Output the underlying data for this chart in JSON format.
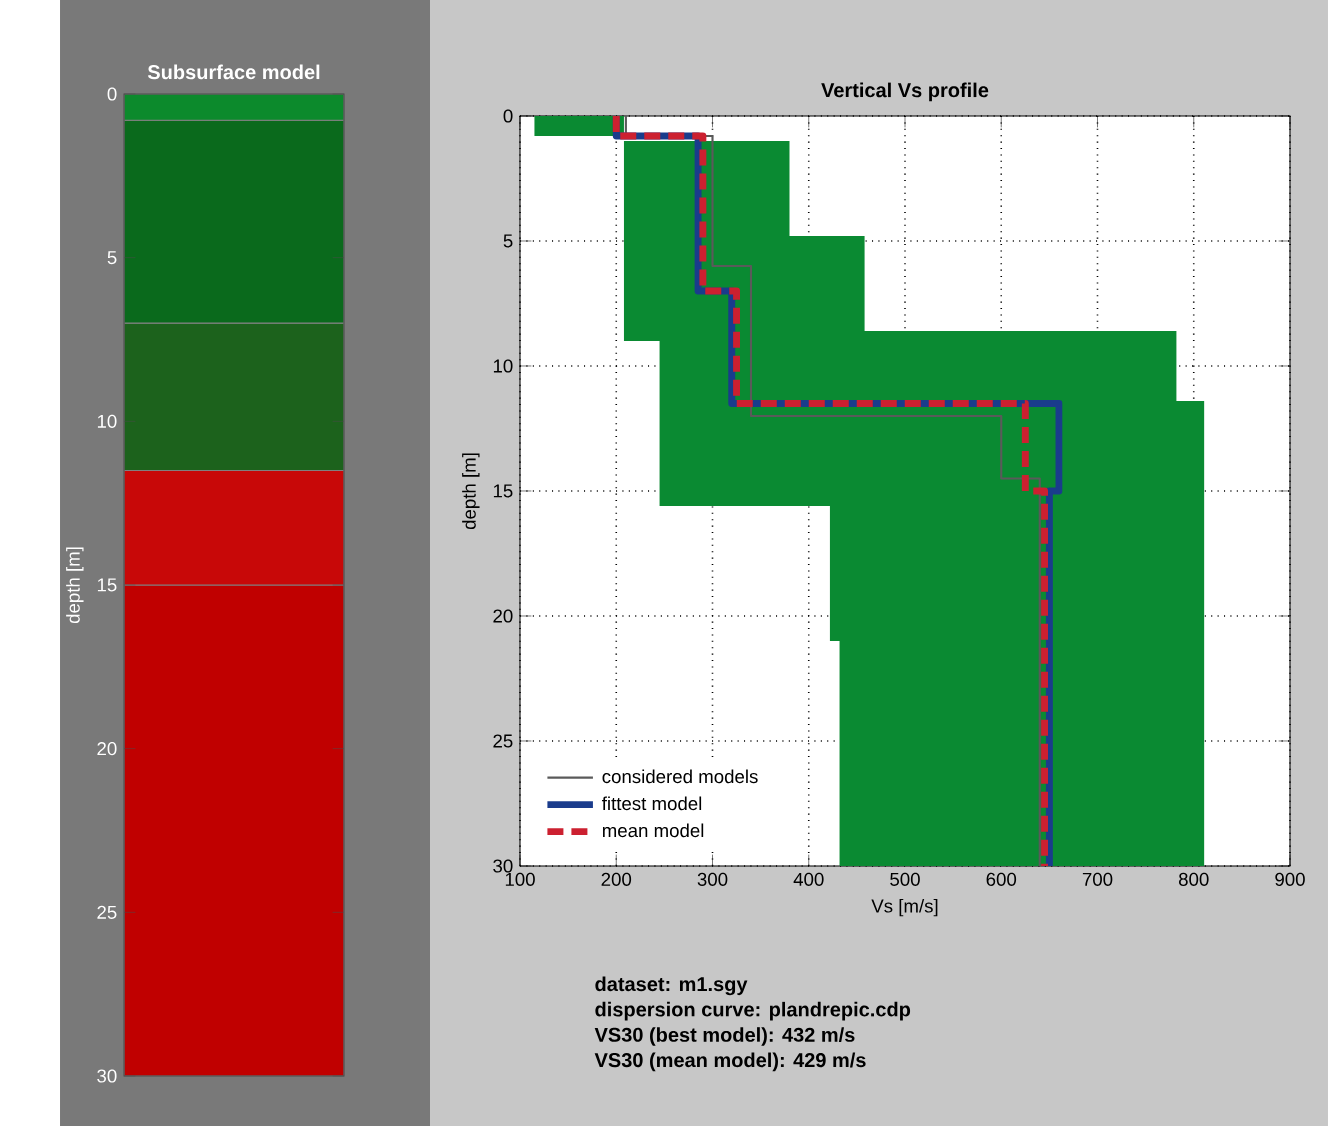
{
  "chart_data": [
    {
      "type": "bar",
      "title": "Subsurface model",
      "ylabel": "depth [m]",
      "stacked": true,
      "categories": [
        null
      ],
      "ylim": [
        30,
        0
      ],
      "yticks": [
        0,
        5,
        10,
        15,
        20,
        25,
        30
      ],
      "series": [
        {
          "color": "#0c8a2c",
          "values": [
            0.8
          ]
        },
        {
          "color": "#0a6a1c",
          "values": [
            6.2
          ]
        },
        {
          "color": "#1c621c",
          "values": [
            4.5
          ]
        },
        {
          "color": "#c80808",
          "values": [
            3.5
          ]
        },
        {
          "color": "#c00000",
          "values": [
            15
          ]
        }
      ]
    },
    {
      "type": "line",
      "title": "Vertical Vs profile",
      "xlabel": "Vs [m/s]",
      "ylabel": "depth [m]",
      "xlim": [
        100,
        900
      ],
      "xticks": [
        100,
        200,
        300,
        400,
        500,
        600,
        700,
        800,
        900
      ],
      "ylim": [
        30,
        0
      ],
      "yticks": [
        0,
        5,
        10,
        15,
        20,
        25,
        30
      ],
      "grid": true,
      "legend": "bottom left",
      "marker": "none",
      "series": [
        {
          "type": "area",
          "color": "#0a8a32",
          "x": [
            115,
            208,
            208,
            380,
            380,
            458,
            458,
            782,
            782,
            811,
            811,
            432,
            432,
            422,
            422,
            245,
            245,
            208,
            208,
            115
          ],
          "values": [
            0,
            0,
            1.0,
            1.0,
            4.8,
            4.8,
            8.6,
            8.6,
            11.4,
            11.4,
            30,
            30,
            21,
            21,
            15.6,
            15.6,
            9.0,
            9.0,
            0.8,
            0.8
          ]
        },
        {
          "name": "considered models",
          "color": "#5a5a5a",
          "x": [
            210,
            210,
            300,
            300,
            340,
            340,
            600,
            600,
            640,
            640
          ],
          "values": [
            0,
            0.8,
            0.8,
            6,
            6,
            12,
            12,
            14.5,
            14.5,
            30
          ]
        },
        {
          "name": "fittest model",
          "color": "#1a3c8c",
          "x": [
            200,
            200,
            285,
            285,
            320,
            320,
            660,
            660,
            650,
            650
          ],
          "values": [
            0,
            0.8,
            0.8,
            7,
            7,
            11.5,
            11.5,
            15,
            15,
            30
          ]
        },
        {
          "name": "mean model",
          "color": "#cc2030",
          "line_style": "dashed",
          "x": [
            200,
            200,
            290,
            290,
            325,
            325,
            625,
            625,
            645,
            645
          ],
          "values": [
            0,
            0.8,
            0.8,
            7,
            7,
            11.5,
            11.5,
            15,
            15,
            30
          ]
        }
      ],
      "annotations": [
        "dataset: m1.sgy",
        "dispersion curve: plandrepic.cdp",
        "VS30 (best model): 432 m/s",
        "VS30 (mean model): 429 m/s"
      ]
    }
  ]
}
